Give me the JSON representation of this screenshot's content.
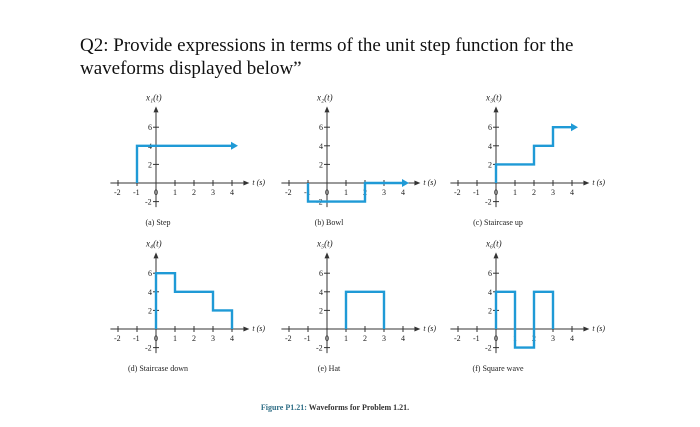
{
  "question": {
    "line1": "Q2: Provide expressions in terms of the unit step function for the",
    "line2": "waveforms displayed below”"
  },
  "figure": {
    "label": "Figure P1.21:",
    "text": " Waveforms for Problem 1.21."
  },
  "colors": {
    "waveform": "#1f9ad6",
    "axis": "#333333"
  },
  "axes": {
    "x_ticks": [
      -2,
      -1,
      0,
      1,
      2,
      3,
      4
    ],
    "y_ticks": [
      -2,
      2,
      4,
      6
    ],
    "x_label": "t (s)"
  },
  "panels": [
    {
      "ylabel": "x₁(t)",
      "caption": "(a) Step",
      "points": [
        [
          -1,
          0
        ],
        [
          -1,
          4
        ],
        [
          4,
          4
        ]
      ],
      "arrow": true
    },
    {
      "ylabel": "x₂(t)",
      "caption": "(b) Bowl",
      "points": [
        [
          -1,
          0
        ],
        [
          -1,
          -2
        ],
        [
          2,
          -2
        ],
        [
          2,
          0
        ],
        [
          4,
          0
        ]
      ],
      "arrow": true
    },
    {
      "ylabel": "x₃(t)",
      "caption": "(c) Staircase up",
      "points": [
        [
          0,
          0
        ],
        [
          0,
          2
        ],
        [
          2,
          2
        ],
        [
          2,
          4
        ],
        [
          3,
          4
        ],
        [
          3,
          6
        ],
        [
          4,
          6
        ]
      ],
      "arrow": true
    },
    {
      "ylabel": "x₄(t)",
      "caption": "(d) Staircase down",
      "points": [
        [
          0,
          0
        ],
        [
          0,
          6
        ],
        [
          1,
          6
        ],
        [
          1,
          4
        ],
        [
          3,
          4
        ],
        [
          3,
          2
        ],
        [
          4,
          2
        ],
        [
          4,
          0
        ]
      ],
      "arrow": false
    },
    {
      "ylabel": "x₅(t)",
      "caption": "(e) Hat",
      "points": [
        [
          1,
          0
        ],
        [
          1,
          4
        ],
        [
          3,
          4
        ],
        [
          3,
          0
        ]
      ],
      "arrow": false
    },
    {
      "ylabel": "x₆(t)",
      "caption": "(f) Square wave",
      "points": [
        [
          0,
          0
        ],
        [
          0,
          4
        ],
        [
          1,
          4
        ],
        [
          1,
          -2
        ],
        [
          2,
          -2
        ],
        [
          2,
          4
        ],
        [
          3,
          4
        ],
        [
          3,
          0
        ]
      ],
      "arrow": false
    }
  ]
}
